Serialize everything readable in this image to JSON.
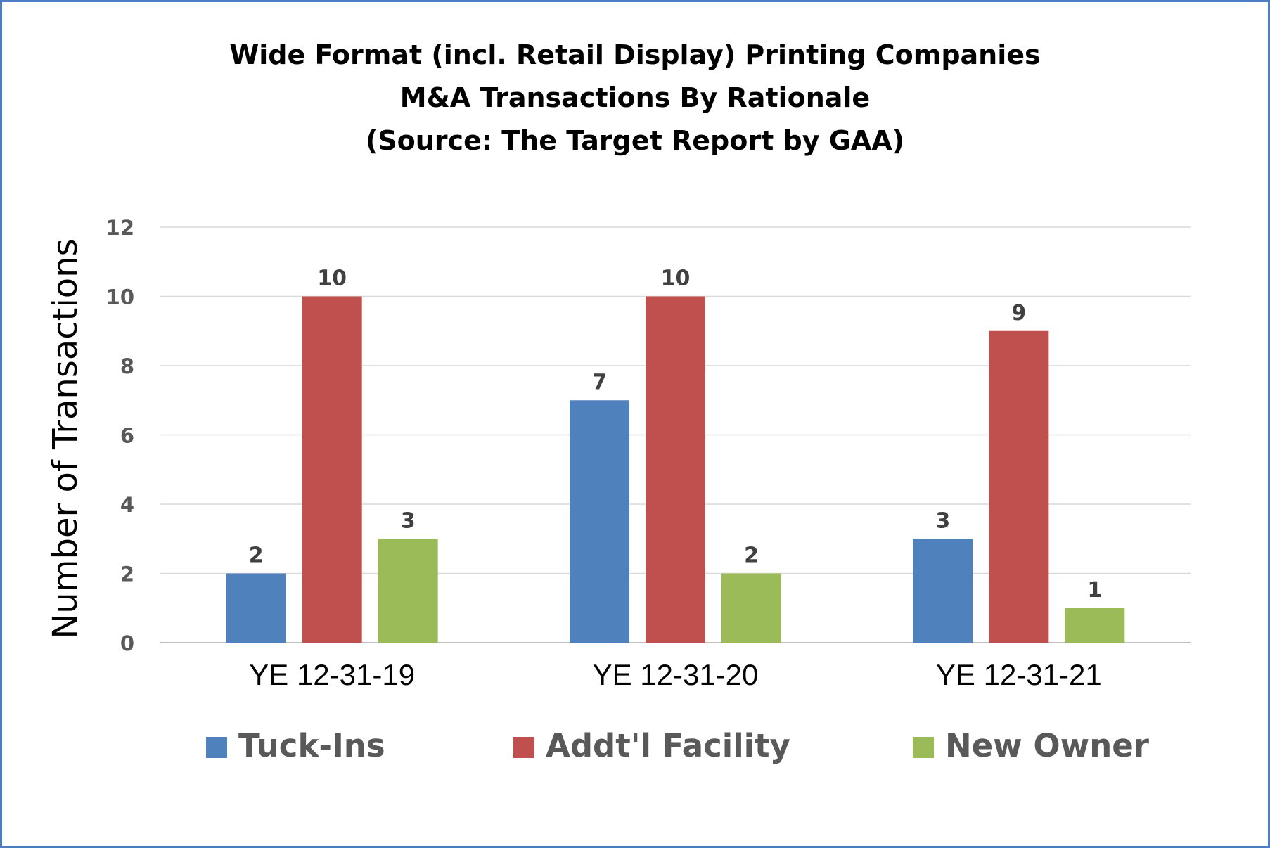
{
  "chart_data": {
    "type": "bar",
    "title_lines": [
      "Wide Format (incl. Retail Display) Printing Companies",
      "M&A Transactions By Rationale",
      "(Source: The Target Report by GAA)"
    ],
    "xlabel": "",
    "ylabel": "Number of Transactions",
    "ylim": [
      0,
      12
    ],
    "yticks": [
      0,
      2,
      4,
      6,
      8,
      10,
      12
    ],
    "grid": true,
    "legend_position": "bottom",
    "categories": [
      "YE 12-31-19",
      "YE 12-31-20",
      "YE 12-31-21"
    ],
    "series": [
      {
        "name": "Tuck-Ins",
        "color": "#4f81bd",
        "values": [
          2,
          7,
          3
        ]
      },
      {
        "name": "Addt'l Facility",
        "color": "#c0504d",
        "values": [
          10,
          10,
          9
        ]
      },
      {
        "name": "New Owner",
        "color": "#9bbb59",
        "values": [
          3,
          2,
          1
        ]
      }
    ]
  }
}
